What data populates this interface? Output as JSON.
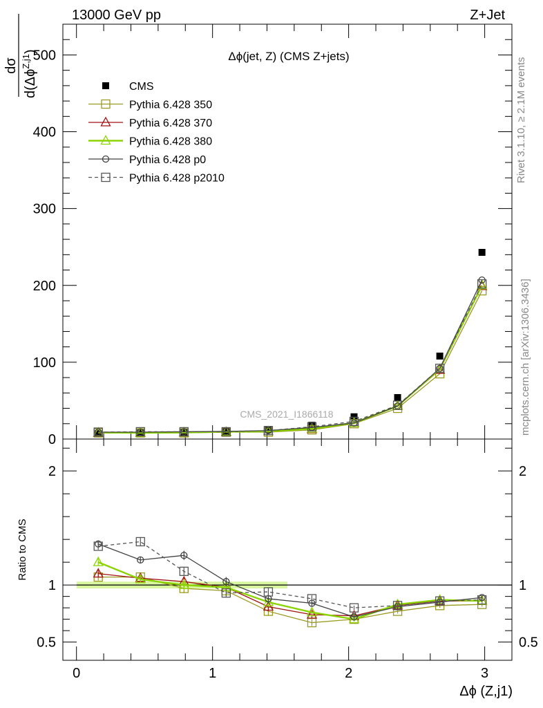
{
  "header": {
    "left": "13000 GeV pp",
    "right": "Z+Jet"
  },
  "plot_title": "Δϕ(jet, Z) (CMS Z+jets)",
  "side_labels": {
    "rivet": "Rivet 3.1.10, ≥ 2.1M events",
    "mcplots": "mcplots.cern.ch [arXiv:1306.3436]"
  },
  "watermark": "CMS_2021_I1866118",
  "chart_data": [
    {
      "type": "line",
      "panel": "main",
      "ylabel_num": "dσ",
      "ylabel_den": "d(Δϕ",
      "ylabel_sup": "Z,j1",
      "ylabel_close": ")",
      "xlim": [
        -0.1,
        3.2
      ],
      "ylim": [
        0,
        540
      ],
      "yticks": [
        0,
        100,
        200,
        300,
        400,
        500
      ],
      "ytick_labels": [
        "0",
        "100",
        "200",
        "300",
        "400",
        "500"
      ],
      "grid": false,
      "legend_position": "top-left",
      "x": [
        0.16,
        0.47,
        0.79,
        1.1,
        1.41,
        1.73,
        2.04,
        2.36,
        2.67,
        2.98
      ],
      "series": [
        {
          "name": "CMS",
          "color": "#000000",
          "marker": "filled-square",
          "line": "none",
          "values": [
            7,
            8,
            9,
            10,
            12,
            18,
            29,
            54,
            108,
            243
          ]
        },
        {
          "name": "Pythia 6.428 350",
          "color": "#9a9a20",
          "marker": "open-square",
          "line": "solid",
          "values": [
            8,
            8,
            8,
            9,
            9,
            12,
            20,
            40,
            85,
            193
          ]
        },
        {
          "name": "Pythia 6.428 370",
          "color": "#a01010",
          "marker": "open-triangle",
          "line": "solid",
          "values": [
            8,
            8,
            8.5,
            9,
            10,
            13,
            21,
            43,
            90,
            199
          ]
        },
        {
          "name": "Pythia 6.428 380",
          "color": "#8bd400",
          "marker": "open-triangle",
          "line": "solid-thick",
          "values": [
            8.5,
            8,
            8.5,
            9.5,
            10,
            13.5,
            21,
            43,
            91,
            200
          ]
        },
        {
          "name": "Pythia 6.428 p0",
          "color": "#404040",
          "marker": "open-circle",
          "line": "solid",
          "values": [
            9,
            9,
            9.5,
            10,
            11,
            15,
            21,
            43,
            92,
            207
          ]
        },
        {
          "name": "Pythia 6.428 p2010",
          "color": "#555555",
          "marker": "open-square",
          "line": "dashed",
          "values": [
            9,
            9.5,
            9.5,
            9.5,
            11,
            16,
            23,
            44,
            92,
            202
          ]
        }
      ]
    },
    {
      "type": "line",
      "panel": "ratio",
      "ylabel": "Ratio to CMS",
      "xlabel": "Δϕ (Z,j1)",
      "xlim": [
        -0.1,
        3.2
      ],
      "ylim": [
        0.34,
        2.28
      ],
      "yticks": [
        0.5,
        1,
        2
      ],
      "ytick_labels": [
        "0.5",
        "1",
        "2"
      ],
      "xticks": [
        0,
        1,
        2,
        3
      ],
      "xtick_labels": [
        "0",
        "1",
        "2",
        "3"
      ],
      "reference": 1,
      "reference_band": {
        "x": [
          0,
          1.55
        ],
        "half_width": 0.03,
        "color": "#d8f5a0"
      },
      "x": [
        0.16,
        0.47,
        0.79,
        1.1,
        1.41,
        1.73,
        2.04,
        2.36,
        2.67,
        2.98
      ],
      "series": [
        {
          "name": "Pythia 6.428 350",
          "color": "#9a9a20",
          "marker": "open-square",
          "line": "solid",
          "values": [
            1.07,
            1.07,
            0.97,
            0.95,
            0.77,
            0.67,
            0.7,
            0.77,
            0.82,
            0.83
          ],
          "errors": [
            0.03,
            0.03,
            0.04,
            0.04,
            0.04,
            0.03,
            0.02,
            0.02,
            0.02,
            0.02
          ]
        },
        {
          "name": "Pythia 6.428 370",
          "color": "#a01010",
          "marker": "open-triangle",
          "line": "solid",
          "values": [
            1.1,
            1.06,
            1.03,
            0.98,
            0.81,
            0.74,
            0.73,
            0.82,
            0.86,
            0.86
          ],
          "errors": [
            0.03,
            0.03,
            0.04,
            0.04,
            0.04,
            0.03,
            0.02,
            0.02,
            0.02,
            0.02
          ]
        },
        {
          "name": "Pythia 6.428 380",
          "color": "#8bd400",
          "marker": "open-triangle",
          "line": "solid-thick",
          "values": [
            1.2,
            1.05,
            1.0,
            0.98,
            0.85,
            0.76,
            0.7,
            0.83,
            0.87,
            0.86
          ],
          "errors": [
            0.03,
            0.03,
            0.04,
            0.04,
            0.04,
            0.03,
            0.02,
            0.02,
            0.02,
            0.02
          ]
        },
        {
          "name": "Pythia 6.428 p0",
          "color": "#404040",
          "marker": "open-circle",
          "line": "solid",
          "values": [
            1.36,
            1.22,
            1.26,
            1.03,
            0.88,
            0.84,
            0.72,
            0.81,
            0.85,
            0.89
          ],
          "errors": [
            0.03,
            0.03,
            0.04,
            0.04,
            0.04,
            0.03,
            0.02,
            0.02,
            0.02,
            0.02
          ]
        },
        {
          "name": "Pythia 6.428 p2010",
          "color": "#555555",
          "marker": "open-square",
          "line": "dashed",
          "values": [
            1.34,
            1.38,
            1.12,
            0.93,
            0.94,
            0.88,
            0.8,
            0.82,
            0.86,
            0.87
          ],
          "errors": [
            0.03,
            0.04,
            0.04,
            0.04,
            0.04,
            0.03,
            0.02,
            0.02,
            0.02,
            0.02
          ]
        }
      ]
    }
  ]
}
